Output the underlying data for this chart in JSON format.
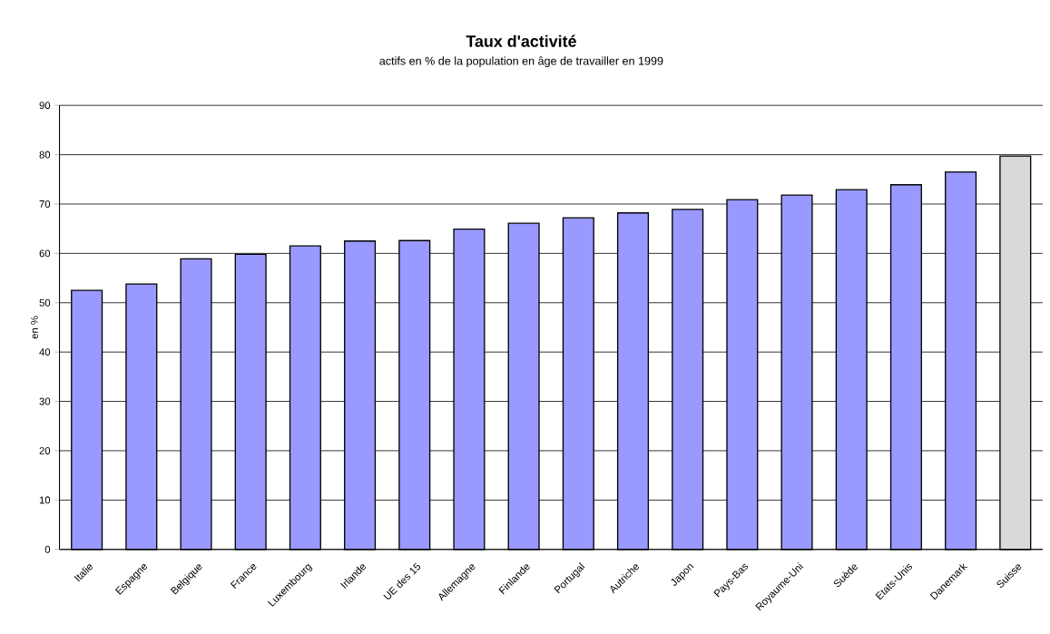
{
  "chart_data": {
    "type": "bar",
    "title": "Taux d'activité",
    "subtitle": "actifs en % de la population en âge de travailler en 1999",
    "ylabel": "en %",
    "categories": [
      "Italie",
      "Espagne",
      "Belgique",
      "France",
      "Luxembourg",
      "Irlande",
      "UE des 15",
      "Allemagne",
      "Finlande",
      "Portugal",
      "Autriche",
      "Japon",
      "Pays-Bas",
      "Royaume-Uni",
      "Suède",
      "Etats-Unis",
      "Danemark",
      "Suisse"
    ],
    "values": [
      52.5,
      53.8,
      58.9,
      59.8,
      61.5,
      62.5,
      62.6,
      64.9,
      66.1,
      67.2,
      68.2,
      68.9,
      70.9,
      71.8,
      72.9,
      73.9,
      76.5,
      79.7
    ],
    "colors": [
      "#9999ff",
      "#9999ff",
      "#9999ff",
      "#9999ff",
      "#9999ff",
      "#9999ff",
      "#9999ff",
      "#9999ff",
      "#9999ff",
      "#9999ff",
      "#9999ff",
      "#9999ff",
      "#9999ff",
      "#9999ff",
      "#9999ff",
      "#9999ff",
      "#9999ff",
      "#d9d9d9"
    ],
    "ylim": [
      0,
      90
    ],
    "yticks": [
      0,
      10,
      20,
      30,
      40,
      50,
      60,
      70,
      80,
      90
    ],
    "grid": "y"
  }
}
